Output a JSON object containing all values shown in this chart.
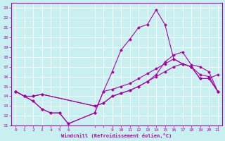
{
  "xlabel": "Windchill (Refroidissement éolien,°C)",
  "bg_color": "#c8f0f0",
  "grid_color": "#ffffff",
  "line_color": "#aa00aa",
  "xlim": [
    -0.5,
    23.5
  ],
  "ylim": [
    11,
    23.5
  ],
  "xticks": [
    0,
    1,
    2,
    3,
    4,
    5,
    6,
    9,
    10,
    11,
    12,
    13,
    14,
    15,
    16,
    17,
    18,
    19,
    20,
    21,
    22,
    23
  ],
  "yticks": [
    11,
    12,
    13,
    14,
    15,
    16,
    17,
    18,
    19,
    20,
    21,
    22,
    23
  ],
  "line1_x": [
    0,
    1,
    2,
    3,
    4,
    5,
    6,
    9,
    10,
    11,
    12,
    13,
    14,
    15,
    16,
    17,
    18,
    19,
    20,
    21,
    22,
    23
  ],
  "line1_y": [
    14.5,
    14.0,
    13.5,
    12.7,
    12.3,
    12.3,
    11.2,
    12.3,
    14.5,
    16.5,
    18.7,
    19.8,
    21.0,
    21.3,
    22.8,
    21.3,
    17.8,
    17.3,
    17.0,
    15.8,
    15.8,
    16.2
  ],
  "line2_x": [
    0,
    1,
    2,
    3,
    4,
    5,
    6,
    9,
    10,
    11,
    12,
    13,
    14,
    15,
    16,
    17,
    18,
    19,
    20,
    21,
    22,
    23
  ],
  "line2_y": [
    14.5,
    14.0,
    13.5,
    12.7,
    12.3,
    12.3,
    11.2,
    12.3,
    14.5,
    14.7,
    15.0,
    15.3,
    15.8,
    16.3,
    16.8,
    17.3,
    17.8,
    17.3,
    17.0,
    15.8,
    15.8,
    14.5
  ],
  "line3_x": [
    0,
    1,
    2,
    3,
    9,
    10,
    11,
    12,
    13,
    14,
    15,
    16,
    17,
    18,
    19,
    20,
    21,
    22,
    23
  ],
  "line3_y": [
    14.5,
    14.0,
    14.0,
    14.2,
    13.0,
    13.3,
    14.0,
    14.3,
    14.6,
    15.0,
    15.5,
    16.2,
    17.5,
    18.2,
    18.5,
    17.2,
    17.0,
    16.5,
    14.5
  ],
  "line4_x": [
    0,
    1,
    2,
    3,
    9,
    10,
    11,
    12,
    13,
    14,
    15,
    16,
    17,
    18,
    19,
    20,
    21,
    22,
    23
  ],
  "line4_y": [
    14.5,
    14.0,
    14.0,
    14.2,
    13.0,
    13.3,
    14.0,
    14.3,
    14.6,
    15.0,
    15.5,
    16.0,
    16.5,
    17.0,
    17.3,
    17.0,
    16.2,
    16.0,
    14.5
  ]
}
